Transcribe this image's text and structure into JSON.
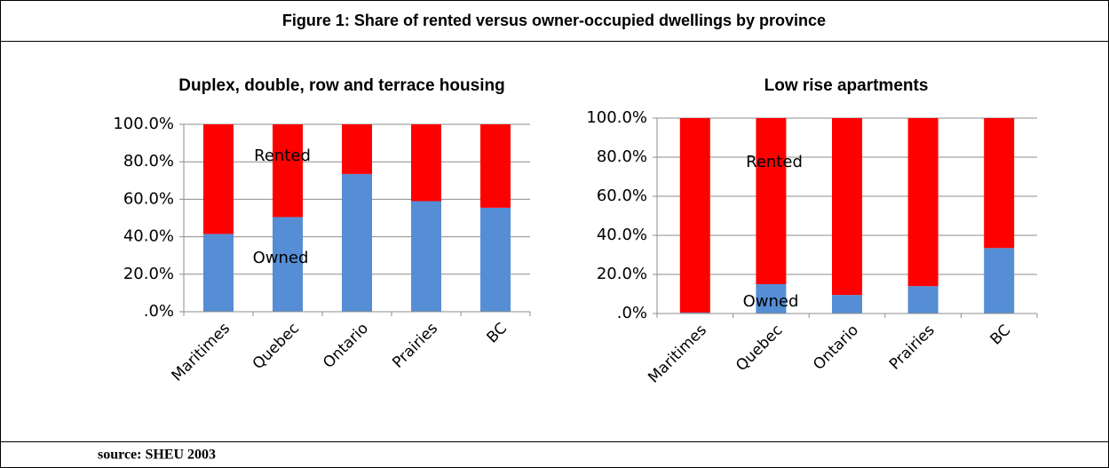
{
  "title": "Figure 1: Share of rented versus owner-occupied dwellings by province",
  "source": "source: SHEU 2003",
  "chart_data": [
    {
      "type": "bar",
      "stacked": true,
      "title": "Duplex, double, row and terrace housing",
      "categories": [
        "Maritimes",
        "Quebec",
        "Ontario",
        "Prairies",
        "BC"
      ],
      "series": [
        {
          "name": "Owned",
          "color": "#558ed5",
          "values": [
            41.5,
            50.5,
            73.5,
            59,
            55.5
          ]
        },
        {
          "name": "Rented",
          "color": "#ff0000",
          "values": [
            58.5,
            49.5,
            26.5,
            41,
            44.5
          ]
        }
      ],
      "ylim": [
        0,
        100
      ],
      "yticks": [
        {
          "value": 0,
          "label": ".0%"
        },
        {
          "value": 20,
          "label": "20.0%"
        },
        {
          "value": 40,
          "label": "40.0%"
        },
        {
          "value": 60,
          "label": "60.0%"
        },
        {
          "value": 80,
          "label": "80.0%"
        },
        {
          "value": 100,
          "label": "100.0%"
        }
      ],
      "grid": true
    },
    {
      "type": "bar",
      "stacked": true,
      "title": "Low rise apartments",
      "categories": [
        "Maritimes",
        "Quebec",
        "Ontario",
        "Prairies",
        "BC"
      ],
      "series": [
        {
          "name": "Owned",
          "color": "#558ed5",
          "values": [
            0.5,
            15,
            9.5,
            14,
            33.5
          ]
        },
        {
          "name": "Rented",
          "color": "#ff0000",
          "values": [
            99.5,
            85,
            90.5,
            86,
            66.5
          ]
        }
      ],
      "ylim": [
        0,
        100
      ],
      "yticks": [
        {
          "value": 0,
          "label": ".0%"
        },
        {
          "value": 20,
          "label": "20.0%"
        },
        {
          "value": 40,
          "label": "40.0%"
        },
        {
          "value": 60,
          "label": "60.0%"
        },
        {
          "value": 80,
          "label": "80.0%"
        },
        {
          "value": 100,
          "label": "100.0%"
        }
      ],
      "grid": true
    }
  ]
}
